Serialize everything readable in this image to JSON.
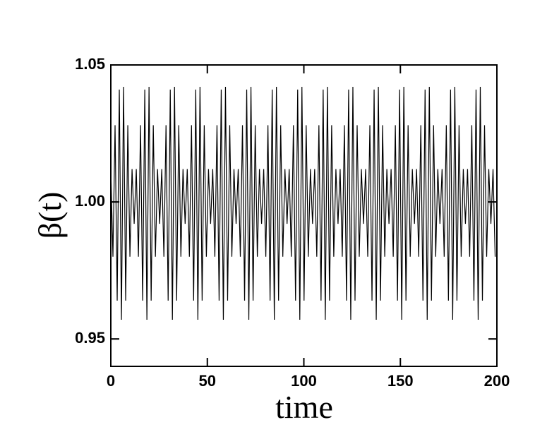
{
  "chart_data": {
    "type": "line",
    "xlabel": "time",
    "ylabel": "β(t)",
    "xlim": [
      0,
      200
    ],
    "xticks": [
      0,
      50,
      100,
      150,
      200
    ],
    "ylim": [
      0.94,
      1.05
    ],
    "yticks": [
      0.95,
      {
        "value": 1.0,
        "label": "1.00"
      },
      1.05
    ],
    "series": [
      {
        "color": "#000000",
        "x": [
          0,
          1.1,
          2.2,
          3.3,
          4.4,
          5.5,
          6.6,
          7.7,
          8.8,
          9.9,
          11,
          12.1,
          13.2,
          14.3,
          15.4,
          16.5,
          17.6,
          18.7,
          19.8,
          20.9,
          22,
          23.1,
          24.2,
          25.3,
          26.4,
          27.5,
          28.6,
          29.7,
          30.8,
          31.9,
          33,
          34.1,
          35.2,
          36.3,
          37.4,
          38.5,
          39.6,
          40.7,
          41.8,
          42.9,
          44,
          45.1,
          46.2,
          47.3,
          48.4,
          49.5,
          50.6,
          51.7,
          52.8,
          53.9,
          55,
          56.1,
          57.2,
          58.3,
          59.4,
          60.5,
          61.6,
          62.7,
          63.8,
          64.9,
          66,
          67.1,
          68.2,
          69.3,
          70.4,
          71.5,
          72.6,
          73.7,
          74.8,
          75.9,
          77,
          78.1,
          79.2,
          80.3,
          81.4,
          82.5,
          83.6,
          84.7,
          85.8,
          86.9,
          88,
          89.1,
          90.2,
          91.3,
          92.4,
          93.5,
          94.6,
          95.7,
          96.8,
          97.9,
          99,
          100.1,
          101.2,
          102.3,
          103.4,
          104.5,
          105.6,
          106.7,
          107.8,
          108.9,
          110,
          111.1,
          112.2,
          113.3,
          114.4,
          115.5,
          116.6,
          117.7,
          118.8,
          119.9,
          121,
          122.1,
          123.2,
          124.3,
          125.4,
          126.5,
          127.6,
          128.7,
          129.8,
          130.9,
          132,
          133.1,
          134.2,
          135.3,
          136.4,
          137.5,
          138.6,
          139.7,
          140.8,
          141.9,
          143,
          144.1,
          145.2,
          146.3,
          147.4,
          148.5,
          149.6,
          150.7,
          151.8,
          152.9,
          154,
          155.1,
          156.2,
          157.3,
          158.4,
          159.5,
          160.6,
          161.7,
          162.8,
          163.9,
          165,
          166.1,
          167.2,
          168.3,
          169.4,
          170.5,
          171.6,
          172.7,
          173.8,
          174.9,
          176,
          177.1,
          178.2,
          179.3,
          180.4,
          181.5,
          182.6,
          183.7,
          184.8,
          185.9,
          187,
          188.1,
          189.2,
          190.3,
          191.4,
          192.5,
          193.6,
          194.7,
          195.8,
          196.9,
          198,
          199.1
        ],
        "values": [
          1.012,
          0.98,
          1.028,
          0.964,
          1.041,
          0.957,
          1.042,
          0.964,
          1.028,
          0.98,
          1.012,
          0.992,
          1.012,
          0.98,
          1.028,
          0.964,
          1.041,
          0.957,
          1.042,
          0.964,
          1.028,
          0.98,
          1.012,
          0.992,
          1.012,
          0.98,
          1.028,
          0.964,
          1.041,
          0.957,
          1.042,
          0.964,
          1.028,
          0.98,
          1.012,
          0.992,
          1.012,
          0.98,
          1.028,
          0.964,
          1.041,
          0.957,
          1.042,
          0.964,
          1.028,
          0.98,
          1.012,
          0.992,
          1.012,
          0.98,
          1.028,
          0.964,
          1.041,
          0.957,
          1.042,
          0.964,
          1.028,
          0.98,
          1.012,
          0.992,
          1.012,
          0.98,
          1.028,
          0.964,
          1.041,
          0.957,
          1.042,
          0.964,
          1.028,
          0.98,
          1.012,
          0.992,
          1.012,
          0.98,
          1.028,
          0.964,
          1.041,
          0.957,
          1.042,
          0.964,
          1.028,
          0.98,
          1.012,
          0.992,
          1.012,
          0.98,
          1.028,
          0.964,
          1.041,
          0.957,
          1.042,
          0.964,
          1.028,
          0.98,
          1.012,
          0.992,
          1.012,
          0.98,
          1.028,
          0.964,
          1.041,
          0.957,
          1.042,
          0.964,
          1.028,
          0.98,
          1.012,
          0.992,
          1.012,
          0.98,
          1.028,
          0.964,
          1.041,
          0.957,
          1.042,
          0.964,
          1.028,
          0.98,
          1.012,
          0.992,
          1.012,
          0.98,
          1.028,
          0.964,
          1.041,
          0.957,
          1.042,
          0.964,
          1.028,
          0.98,
          1.012,
          0.992,
          1.012,
          0.98,
          1.028,
          0.964,
          1.041,
          0.957,
          1.042,
          0.964,
          1.028,
          0.98,
          1.012,
          0.992,
          1.012,
          0.98,
          1.028,
          0.964,
          1.041,
          0.957,
          1.042,
          0.964,
          1.028,
          0.98,
          1.012,
          0.992,
          1.012,
          0.98,
          1.028,
          0.964,
          1.041,
          0.957,
          1.042,
          0.964,
          1.028,
          0.98,
          1.012,
          0.992,
          1.012,
          0.98,
          1.028,
          0.964,
          1.041,
          0.957,
          1.042,
          0.964,
          1.028,
          0.98,
          1.012,
          0.992,
          1.012,
          0.98
        ]
      }
    ]
  }
}
